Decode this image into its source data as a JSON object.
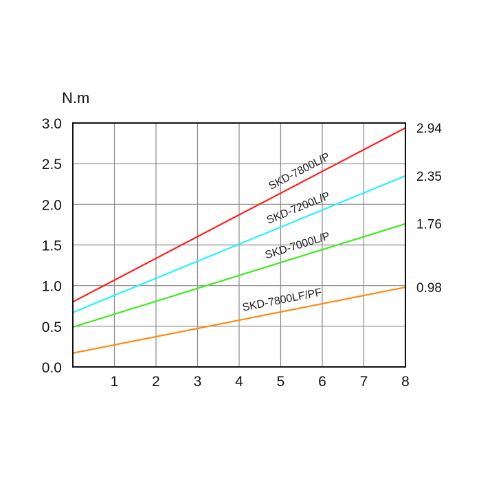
{
  "chart_data": {
    "type": "line",
    "title": "",
    "xlabel": "",
    "ylabel": "N.m",
    "xlim": [
      0,
      8
    ],
    "ylim": [
      0,
      3.0
    ],
    "grid": true,
    "x_ticks": [
      "1",
      "2",
      "3",
      "4",
      "5",
      "6",
      "7",
      "8"
    ],
    "y_ticks": [
      "0.0",
      "0.5",
      "1.0",
      "1.5",
      "2.0",
      "2.5",
      "3.0"
    ],
    "series": [
      {
        "name": "SKD-7800L/P",
        "color": "#ff1f1f",
        "x": [
          0,
          8
        ],
        "y": [
          0.8,
          2.94
        ],
        "end_label": "2.94"
      },
      {
        "name": "SKD-7200L/P",
        "color": "#22f4ff",
        "x": [
          0,
          8
        ],
        "y": [
          0.67,
          2.35
        ],
        "end_label": "2.35"
      },
      {
        "name": "SKD-7000L/P",
        "color": "#3fea1f",
        "x": [
          0,
          8
        ],
        "y": [
          0.49,
          1.76
        ],
        "end_label": "1.76"
      },
      {
        "name": "SKD-7800LF/PF",
        "color": "#ff8a10",
        "x": [
          0,
          8
        ],
        "y": [
          0.17,
          0.98
        ],
        "end_label": "0.98"
      }
    ]
  }
}
